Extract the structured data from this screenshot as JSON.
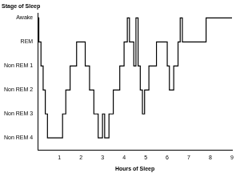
{
  "chart_data": {
    "type": "line",
    "title": "Stage of Sleep",
    "x_label": "Hours of Sleep",
    "x": [
      0,
      0.05,
      0.15,
      0.25,
      0.35,
      0.45,
      1.15,
      1.3,
      1.5,
      1.8,
      2.2,
      2.4,
      2.6,
      2.8,
      3.0,
      3.1,
      3.3,
      3.5,
      3.8,
      4.0,
      4.15,
      4.25,
      4.45,
      4.55,
      4.65,
      4.75,
      4.85,
      4.95,
      5.15,
      5.5,
      6.0,
      6.1,
      6.3,
      6.5,
      6.6,
      6.7,
      7.8,
      9
    ],
    "values": [
      6,
      5,
      4,
      3,
      2,
      1,
      2,
      3,
      4,
      5,
      4,
      3,
      2,
      1,
      2,
      1,
      2,
      3,
      4,
      5,
      6,
      5,
      4,
      6,
      4,
      3,
      2,
      3,
      4,
      5,
      4,
      3,
      4,
      5,
      6,
      5,
      6,
      6
    ],
    "color": "#000000",
    "line_style": "steps",
    "xlim": [
      0,
      9
    ],
    "xticks": [
      1,
      2,
      3,
      4,
      5,
      6,
      7,
      8,
      9
    ],
    "ylim": [
      0.5,
      6.2
    ],
    "yticks": [
      {
        "value": 1,
        "label": "Non REM 4"
      },
      {
        "value": 2,
        "label": "Non REM 3"
      },
      {
        "value": 3,
        "label": "Non REM 2"
      },
      {
        "value": 4,
        "label": "Non REM 1"
      },
      {
        "value": 5,
        "label": "REM"
      },
      {
        "value": 6,
        "label": "Awake"
      }
    ],
    "grid": false,
    "legend": false
  }
}
